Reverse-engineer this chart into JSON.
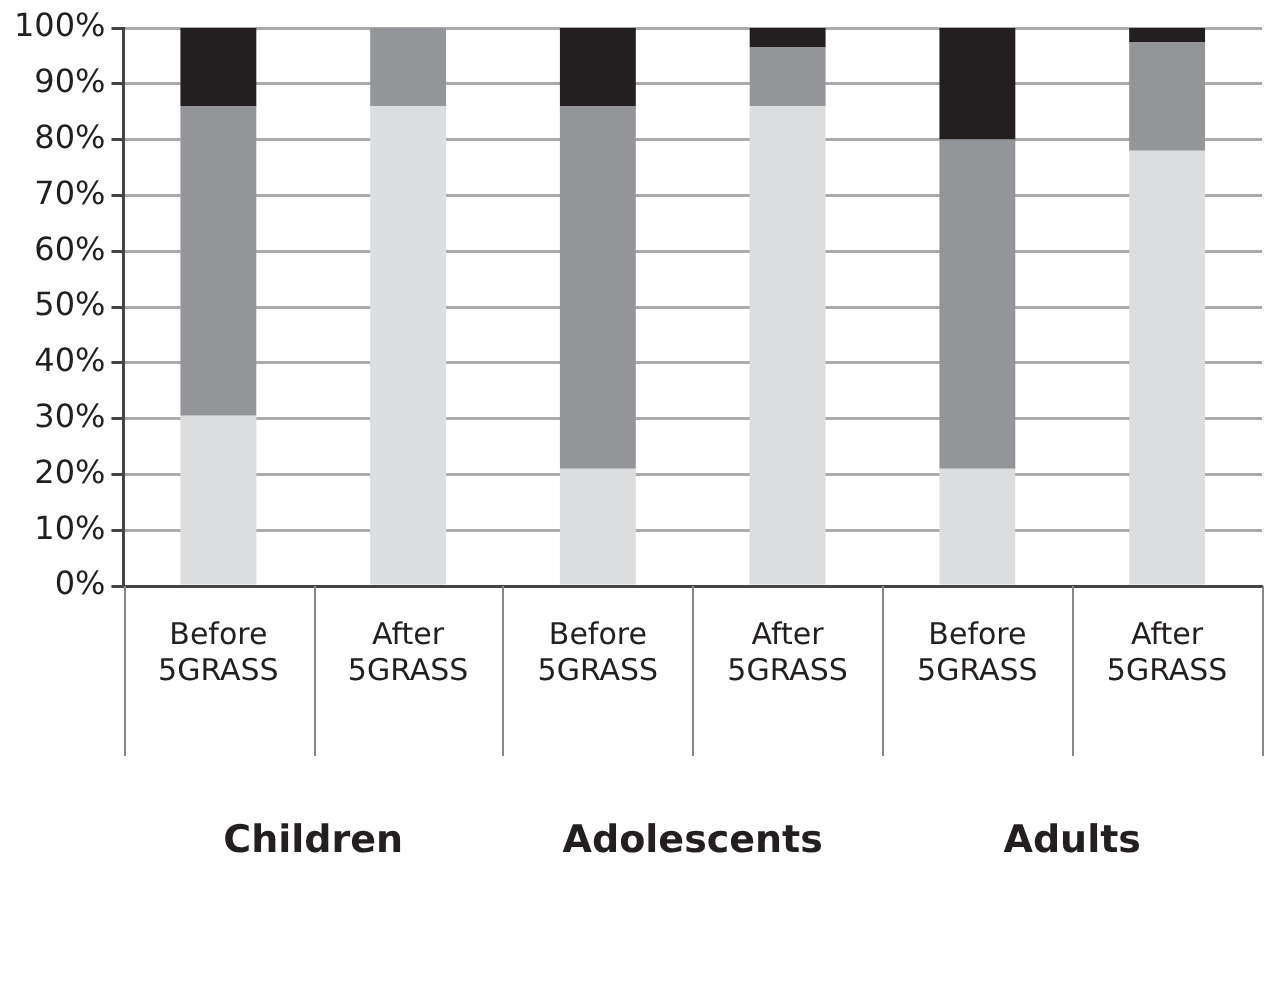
{
  "chart_data": {
    "type": "bar",
    "stacked": true,
    "grid": "y",
    "legend": false,
    "categories": [
      "Before 5GRASS",
      "After 5GRASS",
      "Before 5GRASS",
      "After 5GRASS",
      "Before 5GRASS",
      "After 5GRASS"
    ],
    "series": [
      {
        "color": "#dcdddf",
        "values": [
          30.5,
          86,
          21,
          86,
          21,
          78
        ]
      },
      {
        "color": "#939598",
        "values": [
          55.5,
          14,
          65,
          10.5,
          59,
          19.5
        ]
      },
      {
        "color": "#231f20",
        "values": [
          14,
          0,
          14,
          3.5,
          20,
          2.5
        ]
      }
    ],
    "ylim": [
      0,
      100
    ],
    "yticks": [
      {
        "value": 0,
        "label": "0%"
      },
      {
        "value": 10,
        "label": "10%"
      },
      {
        "value": 20,
        "label": "20%"
      },
      {
        "value": 30,
        "label": "30%"
      },
      {
        "value": 40,
        "label": "40%"
      },
      {
        "value": 50,
        "label": "50%"
      },
      {
        "value": 60,
        "label": "60%"
      },
      {
        "value": 70,
        "label": "70%"
      },
      {
        "value": 80,
        "label": "80%"
      },
      {
        "value": 90,
        "label": "90%"
      },
      {
        "value": 100,
        "label": "100%"
      }
    ],
    "annotations": [
      "Children",
      "Adolescents",
      "Adults"
    ]
  }
}
